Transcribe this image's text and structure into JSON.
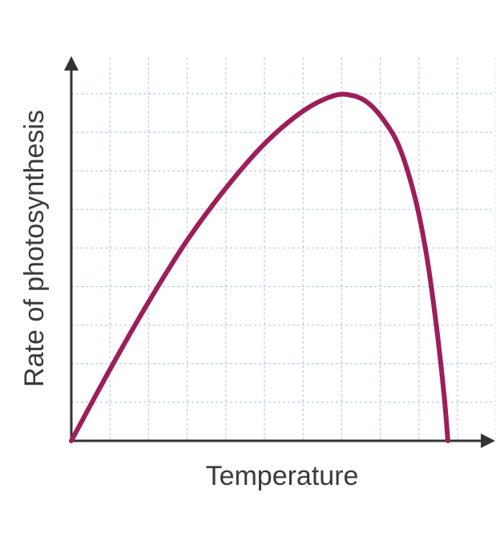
{
  "chart_data": {
    "type": "line",
    "xlabel": "Temperature",
    "ylabel": "Rate of photosynthesis",
    "xlim": [
      0,
      11
    ],
    "ylim": [
      0,
      9
    ],
    "grid": true,
    "x_ticks_labeled": false,
    "y_ticks_labeled": false,
    "series": [
      {
        "color": "#9c1e5a",
        "x": [
          0,
          1,
          2,
          3,
          4,
          5,
          6,
          6.8,
          7.3,
          7.7,
          8.1,
          8.5,
          8.9,
          9.2,
          9.45,
          9.65,
          9.75
        ],
        "y": [
          0,
          1.85,
          3.6,
          5.2,
          6.55,
          7.7,
          8.55,
          8.95,
          8.95,
          8.75,
          8.3,
          7.6,
          6.3,
          4.8,
          3.0,
          1.2,
          0
        ]
      }
    ]
  },
  "colors": {
    "grid": "#b9c9e6",
    "axis": "#333333",
    "curve": "#9c1e5a"
  }
}
